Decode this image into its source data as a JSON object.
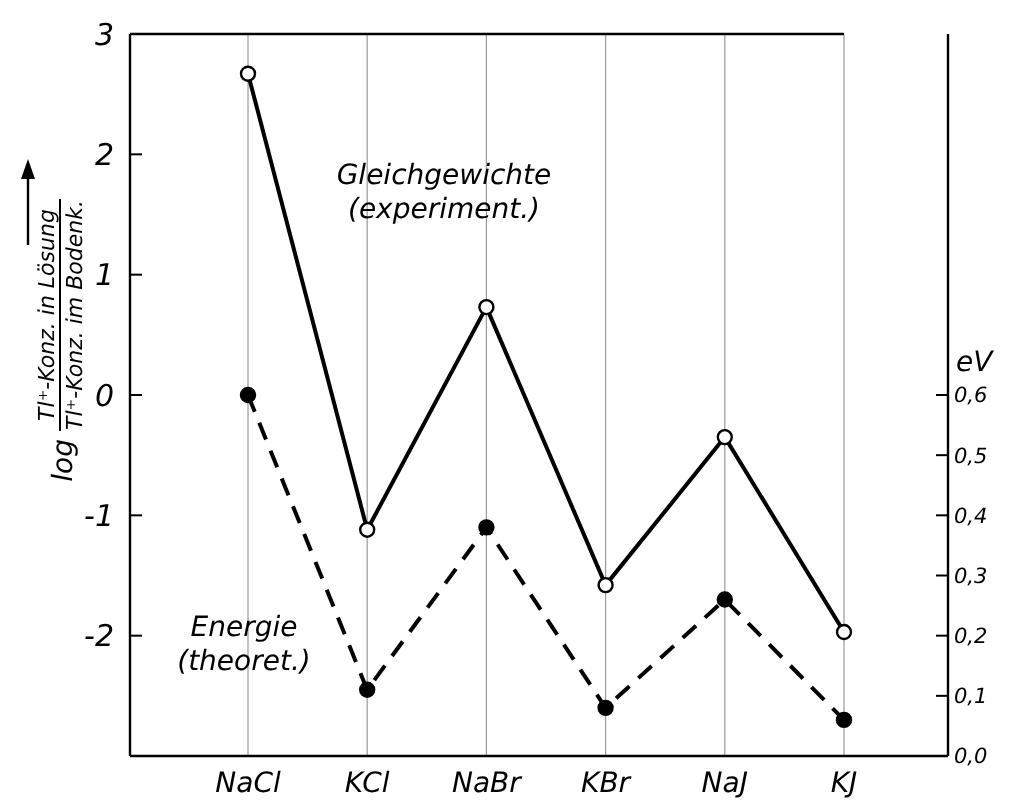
{
  "chart_data": {
    "type": "line",
    "ylabel": "log Tl⁺-Konz. in Lösung Tl⁺-Konz. im Bodenk.",
    "y2label": "eV",
    "categories": [
      "NaCl",
      "KCl",
      "NaBr",
      "KBr",
      "NaJ",
      "KJ"
    ],
    "ylim": [
      -3,
      3
    ],
    "yticks": [
      -2,
      -1,
      0,
      1,
      2,
      3
    ],
    "y2lim": [
      0,
      1.2
    ],
    "y2ticks": [
      {
        "value": 0,
        "label": "0,0"
      },
      {
        "value": 0.1,
        "label": "0,1"
      },
      {
        "value": 0.2,
        "label": "0,2"
      },
      {
        "value": 0.3,
        "label": "0,3"
      },
      {
        "value": 0.4,
        "label": "0,4"
      },
      {
        "value": 0.5,
        "label": "0,5"
      },
      {
        "value": 0.6,
        "label": "0,6"
      }
    ],
    "grid": "x",
    "marker": "circle",
    "series": [
      {
        "name": "Gleichgewichte (experiment.)",
        "color": "#000000",
        "line_style": "solid",
        "values": [
          2.67,
          -1.12,
          0.73,
          -1.58,
          -0.35,
          -1.97
        ]
      },
      {
        "name": "Energie (theoret.)",
        "color": "#000000",
        "line_style": "dashed",
        "axis": "y2",
        "values": [
          0.6,
          0.11,
          0.38,
          0.08,
          0.26,
          0.06
        ]
      }
    ]
  }
}
